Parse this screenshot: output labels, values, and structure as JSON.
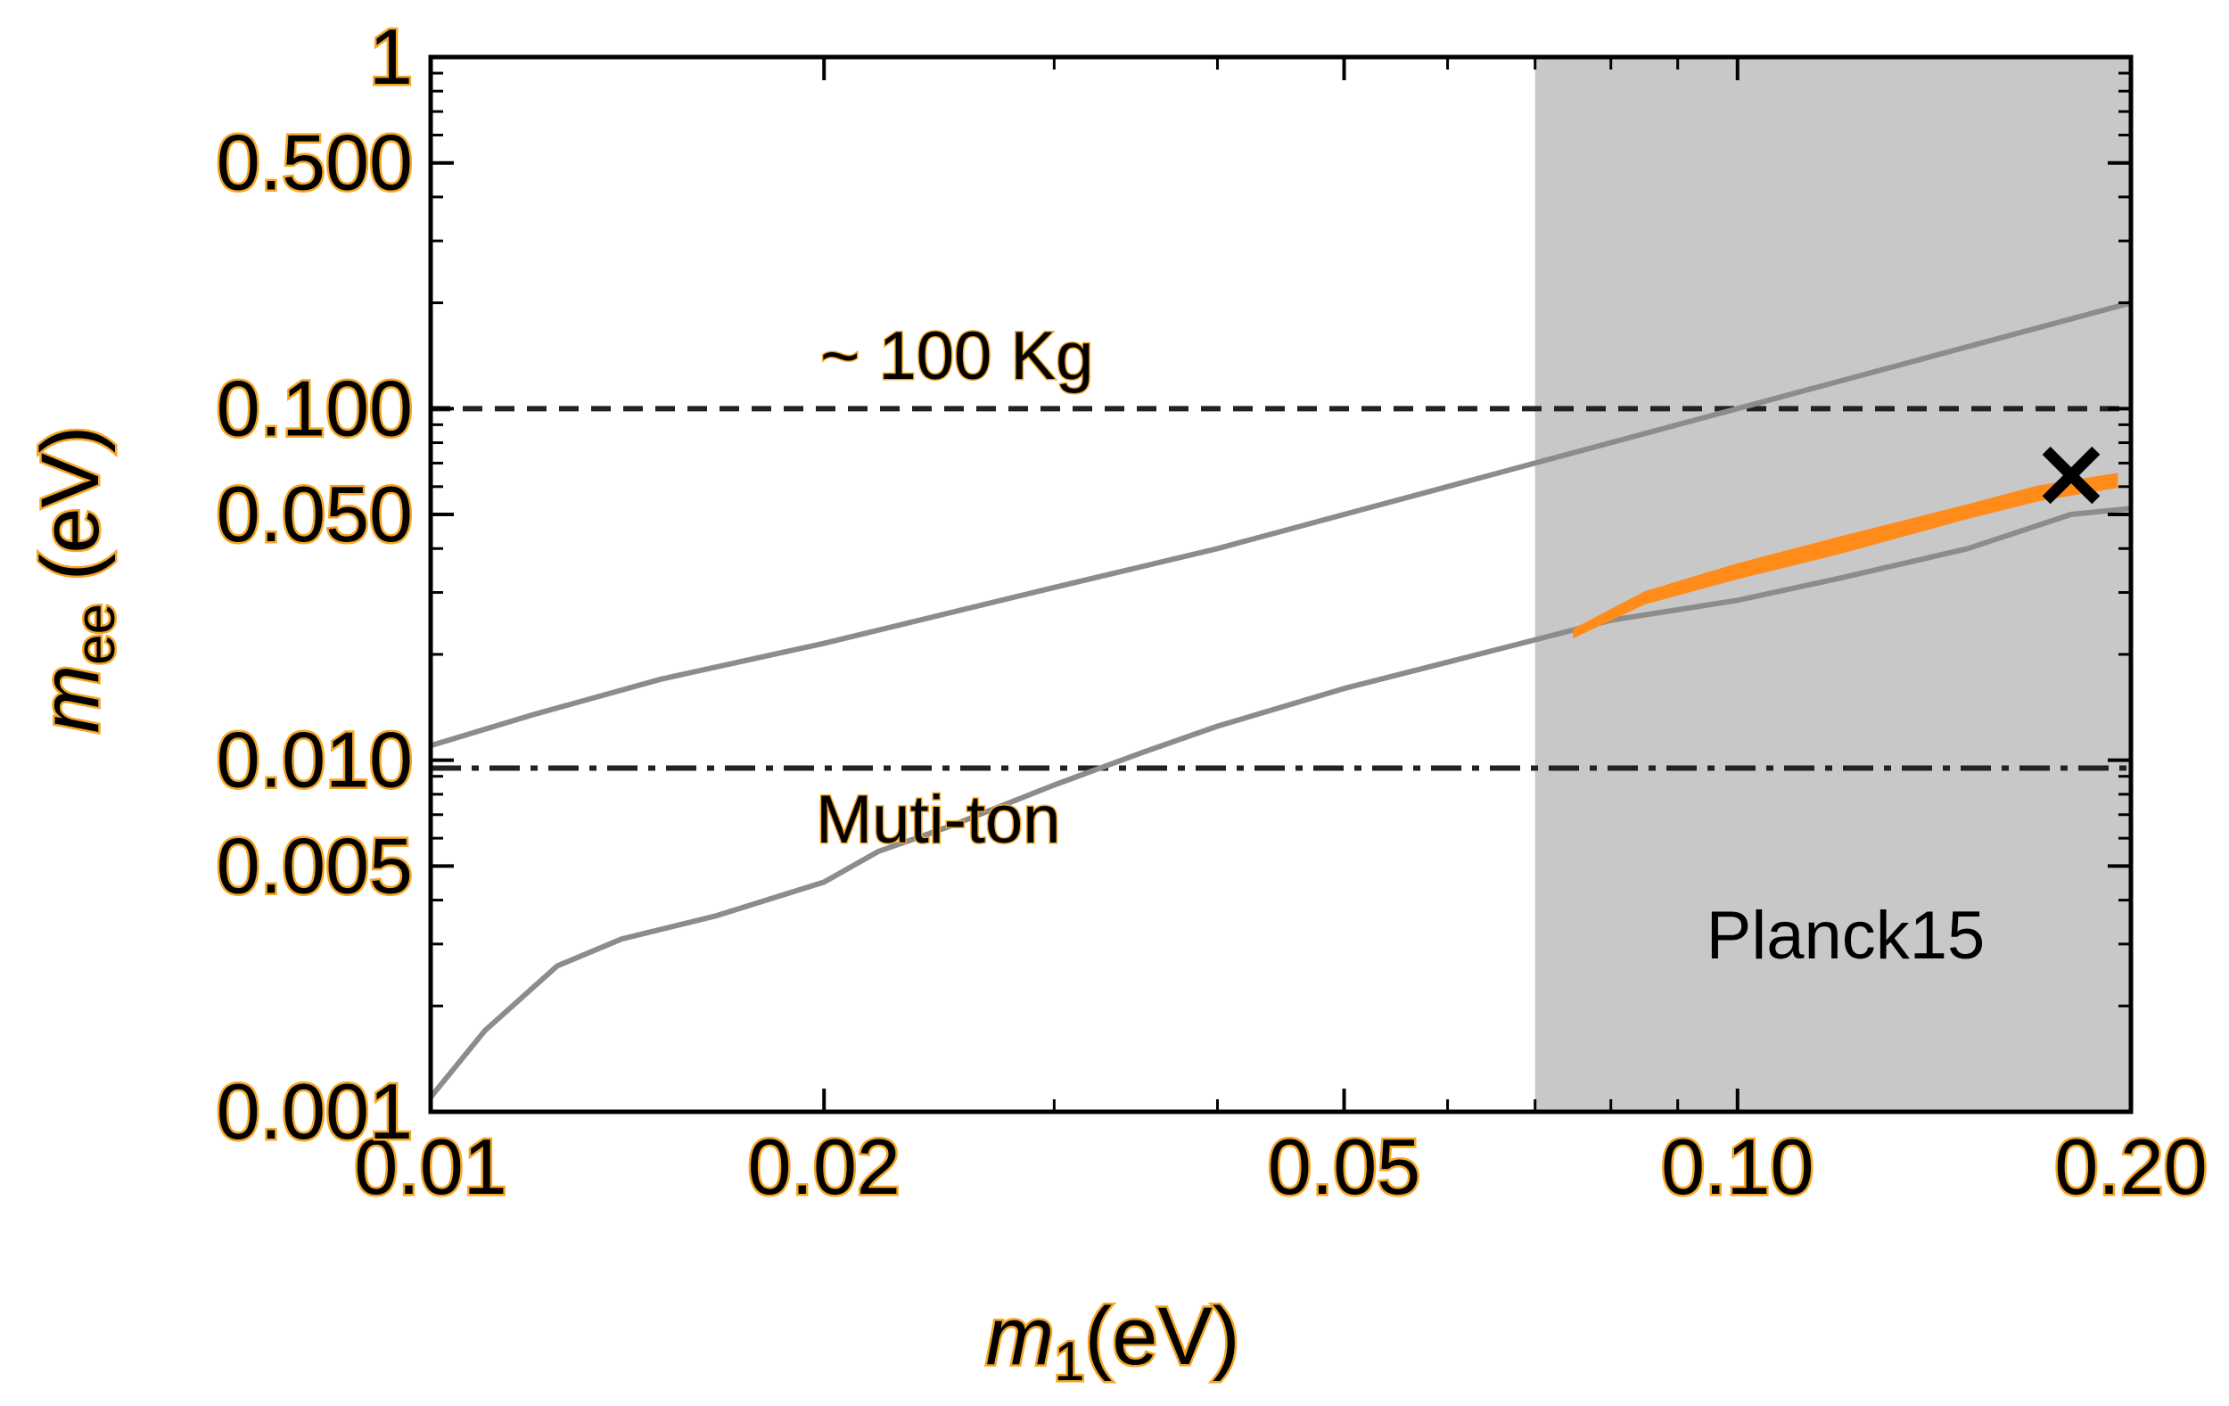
{
  "chart_data": {
    "type": "line",
    "title": "",
    "xlabel": {
      "main": "m",
      "sub": "1",
      "unit": "(eV)"
    },
    "ylabel": {
      "main": "m",
      "sub": "ee",
      "unit": " (eV)"
    },
    "x_scale": "log",
    "y_scale": "log",
    "xlim": [
      0.01,
      0.2
    ],
    "ylim": [
      0.001,
      1
    ],
    "x_ticks": [
      {
        "value": 0.01,
        "label": "0.01"
      },
      {
        "value": 0.02,
        "label": "0.02"
      },
      {
        "value": 0.05,
        "label": "0.05"
      },
      {
        "value": 0.1,
        "label": "0.10"
      },
      {
        "value": 0.2,
        "label": "0.20"
      }
    ],
    "y_ticks": [
      {
        "value": 0.001,
        "label": "0.001"
      },
      {
        "value": 0.005,
        "label": "0.005"
      },
      {
        "value": 0.01,
        "label": "0.010"
      },
      {
        "value": 0.05,
        "label": "0.050"
      },
      {
        "value": 0.1,
        "label": "0.100"
      },
      {
        "value": 0.5,
        "label": "0.500"
      },
      {
        "value": 1,
        "label": "1"
      }
    ],
    "grid": false,
    "excluded_region": {
      "label": "Planck15",
      "x_from": 0.07,
      "x_to": 0.2,
      "color": "#c8c8c8"
    },
    "reference_lines": [
      {
        "label": "~ 100 Kg",
        "y": 0.1,
        "style": "dashed"
      },
      {
        "label": "Muti-ton",
        "y": 0.0095,
        "style": "dashdot"
      }
    ],
    "series": [
      {
        "role": "upper-bound",
        "color": "#8c8c8c",
        "points": [
          [
            0.01,
            0.011
          ],
          [
            0.012,
            0.0135
          ],
          [
            0.015,
            0.017
          ],
          [
            0.02,
            0.0215
          ],
          [
            0.03,
            0.031
          ],
          [
            0.04,
            0.04
          ],
          [
            0.05,
            0.05
          ],
          [
            0.06,
            0.06
          ],
          [
            0.07,
            0.07
          ],
          [
            0.08,
            0.08
          ],
          [
            0.1,
            0.1
          ],
          [
            0.15,
            0.15
          ],
          [
            0.2,
            0.2
          ]
        ]
      },
      {
        "role": "lower-bound",
        "color": "#8c8c8c",
        "points": [
          [
            0.01,
            0.0011
          ],
          [
            0.011,
            0.0017
          ],
          [
            0.0125,
            0.0026
          ],
          [
            0.014,
            0.0031
          ],
          [
            0.0165,
            0.0036
          ],
          [
            0.02,
            0.0045
          ],
          [
            0.022,
            0.0055
          ],
          [
            0.025,
            0.0065
          ],
          [
            0.03,
            0.0085
          ],
          [
            0.035,
            0.0105
          ],
          [
            0.04,
            0.0125
          ],
          [
            0.05,
            0.016
          ],
          [
            0.06,
            0.019
          ],
          [
            0.07,
            0.022
          ],
          [
            0.08,
            0.025
          ],
          [
            0.1,
            0.0285
          ],
          [
            0.12,
            0.033
          ],
          [
            0.15,
            0.04
          ],
          [
            0.18,
            0.05
          ],
          [
            0.2,
            0.052
          ]
        ]
      }
    ],
    "allowed_region": {
      "color": "#ff8c1a",
      "upper": [
        [
          0.075,
          0.0235
        ],
        [
          0.085,
          0.03
        ],
        [
          0.1,
          0.036
        ],
        [
          0.12,
          0.043
        ],
        [
          0.15,
          0.053
        ],
        [
          0.17,
          0.06
        ],
        [
          0.195,
          0.065
        ]
      ],
      "lower": [
        [
          0.195,
          0.06
        ],
        [
          0.17,
          0.055
        ],
        [
          0.15,
          0.049
        ],
        [
          0.12,
          0.039
        ],
        [
          0.1,
          0.033
        ],
        [
          0.085,
          0.028
        ],
        [
          0.075,
          0.0225
        ]
      ]
    },
    "marker": {
      "symbol": "×",
      "x": 0.18,
      "y": 0.063,
      "color": "#000000"
    }
  }
}
